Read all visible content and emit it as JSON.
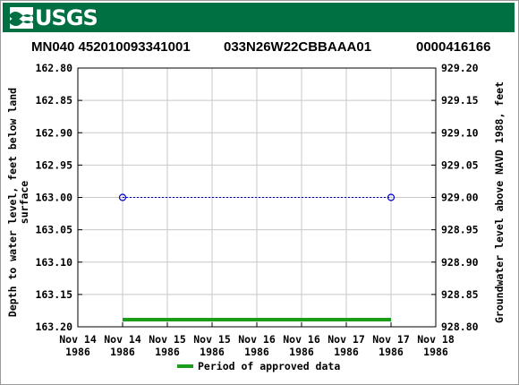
{
  "header": {
    "logo_text": "USGS",
    "site_name": "MN040 452010093341001",
    "site_code": "033N26W22CBBAAA01",
    "station_id": "0000416166"
  },
  "colors": {
    "banner": "#006f41",
    "approved_period": "#1a9e1a",
    "data_series": "#0000cc",
    "grid": "#c8c8c8"
  },
  "chart_data": {
    "type": "line",
    "y_left_label": [
      "Depth to water level, feet below land",
      "surface"
    ],
    "y_right_label": "Groundwater level above NAVD 1988, feet",
    "y_left_ticks": [
      "162.80",
      "162.85",
      "162.90",
      "162.95",
      "163.00",
      "163.05",
      "163.10",
      "163.15",
      "163.20"
    ],
    "y_right_ticks": [
      "929.20",
      "929.15",
      "929.10",
      "929.05",
      "929.00",
      "928.95",
      "928.90",
      "928.85",
      "928.80"
    ],
    "ylim_left": [
      162.8,
      163.2
    ],
    "ylim_right": [
      929.2,
      928.8
    ],
    "y_inverted": true,
    "x_ticks": [
      {
        "line1": "Nov 14",
        "line2": "1986"
      },
      {
        "line1": "Nov 14",
        "line2": "1986"
      },
      {
        "line1": "Nov 15",
        "line2": "1986"
      },
      {
        "line1": "Nov 15",
        "line2": "1986"
      },
      {
        "line1": "Nov 16",
        "line2": "1986"
      },
      {
        "line1": "Nov 16",
        "line2": "1986"
      },
      {
        "line1": "Nov 17",
        "line2": "1986"
      },
      {
        "line1": "Nov 17",
        "line2": "1986"
      },
      {
        "line1": "Nov 18",
        "line2": "1986"
      }
    ],
    "xlim": [
      "1986-11-14 00:00",
      "1986-11-18 00:00"
    ],
    "series": [
      {
        "values": [
          {
            "x": "1986-11-14 12:00",
            "y": 163.0
          },
          {
            "x": "1986-11-17 12:00",
            "y": 163.0
          }
        ]
      }
    ],
    "approved_period": {
      "start": "1986-11-14 12:00",
      "end": "1986-11-17 12:00"
    },
    "grid": true,
    "legend": {
      "label": "Period of approved data",
      "placement": "bottom-center"
    }
  }
}
